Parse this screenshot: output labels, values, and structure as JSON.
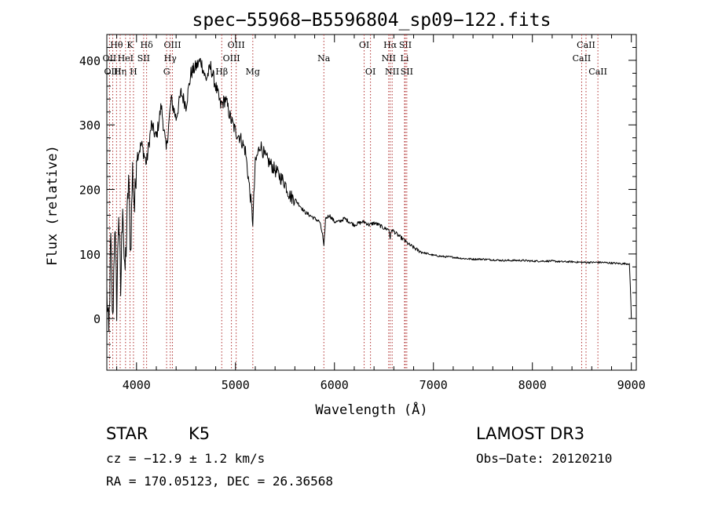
{
  "chart_data": {
    "type": "line",
    "title": "spec−55968−B5596804_sp09−122.fits",
    "xlabel": "Wavelength (Å)",
    "ylabel": "Flux (relative)",
    "xlim": [
      3700,
      9050
    ],
    "ylim": [
      -80,
      440
    ],
    "x_ticks": [
      4000,
      5000,
      6000,
      7000,
      8000,
      9000
    ],
    "y_ticks": [
      0,
      100,
      200,
      300,
      400
    ],
    "grid": false,
    "line_color": "#000000",
    "marker_color": "#b03030",
    "series": [
      {
        "name": "flux",
        "x": [
          3700,
          3720,
          3740,
          3760,
          3780,
          3800,
          3820,
          3840,
          3860,
          3880,
          3900,
          3920,
          3940,
          3960,
          3980,
          4000,
          4050,
          4100,
          4150,
          4200,
          4250,
          4300,
          4350,
          4400,
          4450,
          4500,
          4550,
          4600,
          4650,
          4700,
          4750,
          4800,
          4850,
          4900,
          4950,
          5000,
          5050,
          5100,
          5150,
          5175,
          5200,
          5250,
          5300,
          5350,
          5400,
          5450,
          5500,
          5550,
          5600,
          5650,
          5700,
          5750,
          5800,
          5850,
          5880,
          5893,
          5910,
          5950,
          6000,
          6050,
          6100,
          6150,
          6200,
          6250,
          6300,
          6350,
          6400,
          6450,
          6500,
          6550,
          6563,
          6580,
          6600,
          6650,
          6700,
          6750,
          6800,
          6850,
          6900,
          6950,
          7000,
          7100,
          7200,
          7300,
          7400,
          7500,
          7600,
          7700,
          7800,
          7900,
          8000,
          8100,
          8200,
          8300,
          8400,
          8500,
          8600,
          8700,
          8800,
          8900,
          8980,
          8990,
          9000
        ],
        "values": [
          40,
          -30,
          120,
          -10,
          150,
          20,
          170,
          40,
          190,
          60,
          130,
          220,
          100,
          230,
          170,
          250,
          270,
          240,
          300,
          280,
          330,
          260,
          340,
          310,
          350,
          330,
          380,
          390,
          400,
          370,
          390,
          360,
          330,
          340,
          310,
          290,
          280,
          260,
          190,
          150,
          240,
          270,
          250,
          240,
          230,
          220,
          210,
          190,
          185,
          175,
          165,
          160,
          155,
          150,
          130,
          110,
          155,
          160,
          150,
          150,
          155,
          150,
          145,
          148,
          150,
          145,
          148,
          145,
          140,
          138,
          125,
          138,
          135,
          128,
          122,
          115,
          110,
          105,
          102,
          100,
          98,
          96,
          95,
          93,
          92,
          92,
          91,
          90,
          90,
          90,
          89,
          89,
          89,
          88,
          88,
          87,
          87,
          87,
          86,
          85,
          85,
          50,
          0
        ]
      }
    ],
    "line_markers": [
      {
        "label": "Hθ",
        "wavelength": 3798,
        "row": 1
      },
      {
        "label": "OII",
        "wavelength": 3727,
        "row": 2
      },
      {
        "label": "OIII",
        "wavelength": 3760,
        "row": 3
      },
      {
        "label": "Hη",
        "wavelength": 3835,
        "row": 3
      },
      {
        "label": "K",
        "wavelength": 3934,
        "row": 1
      },
      {
        "label": "HeI",
        "wavelength": 3889,
        "row": 2
      },
      {
        "label": "SII",
        "wavelength": 4072,
        "row": 2
      },
      {
        "label": "H",
        "wavelength": 3969,
        "row": 3
      },
      {
        "label": "Hδ",
        "wavelength": 4102,
        "row": 1
      },
      {
        "label": "OIII",
        "wavelength": 4363,
        "row": 1
      },
      {
        "label": "Hγ",
        "wavelength": 4341,
        "row": 2
      },
      {
        "label": "G",
        "wavelength": 4304,
        "row": 3
      },
      {
        "label": "OIII",
        "wavelength": 5007,
        "row": 1
      },
      {
        "label": "OIII",
        "wavelength": 4959,
        "row": 2
      },
      {
        "label": "Hβ",
        "wavelength": 4861,
        "row": 3
      },
      {
        "label": "Mg",
        "wavelength": 5175,
        "row": 3
      },
      {
        "label": "Na",
        "wavelength": 5893,
        "row": 2
      },
      {
        "label": "OI",
        "wavelength": 6300,
        "row": 1
      },
      {
        "label": "OI",
        "wavelength": 6364,
        "row": 3
      },
      {
        "label": "Hα",
        "wavelength": 6563,
        "row": 1
      },
      {
        "label": "SII",
        "wavelength": 6716,
        "row": 1
      },
      {
        "label": "NII",
        "wavelength": 6548,
        "row": 2
      },
      {
        "label": "Li",
        "wavelength": 6708,
        "row": 2
      },
      {
        "label": "NII",
        "wavelength": 6583,
        "row": 3
      },
      {
        "label": "SII",
        "wavelength": 6731,
        "row": 3
      },
      {
        "label": "CaII",
        "wavelength": 8542,
        "row": 1
      },
      {
        "label": "CaII",
        "wavelength": 8498,
        "row": 2
      },
      {
        "label": "CaII",
        "wavelength": 8662,
        "row": 3
      }
    ]
  },
  "info": {
    "object_class": "STAR",
    "subclass": "K5",
    "redshift": "cz = −12.9 ± 1.2 km/s",
    "coords": "RA = 170.05123, DEC =  26.36568",
    "survey": "LAMOST DR3",
    "obs_date": "Obs−Date: 20120210"
  }
}
